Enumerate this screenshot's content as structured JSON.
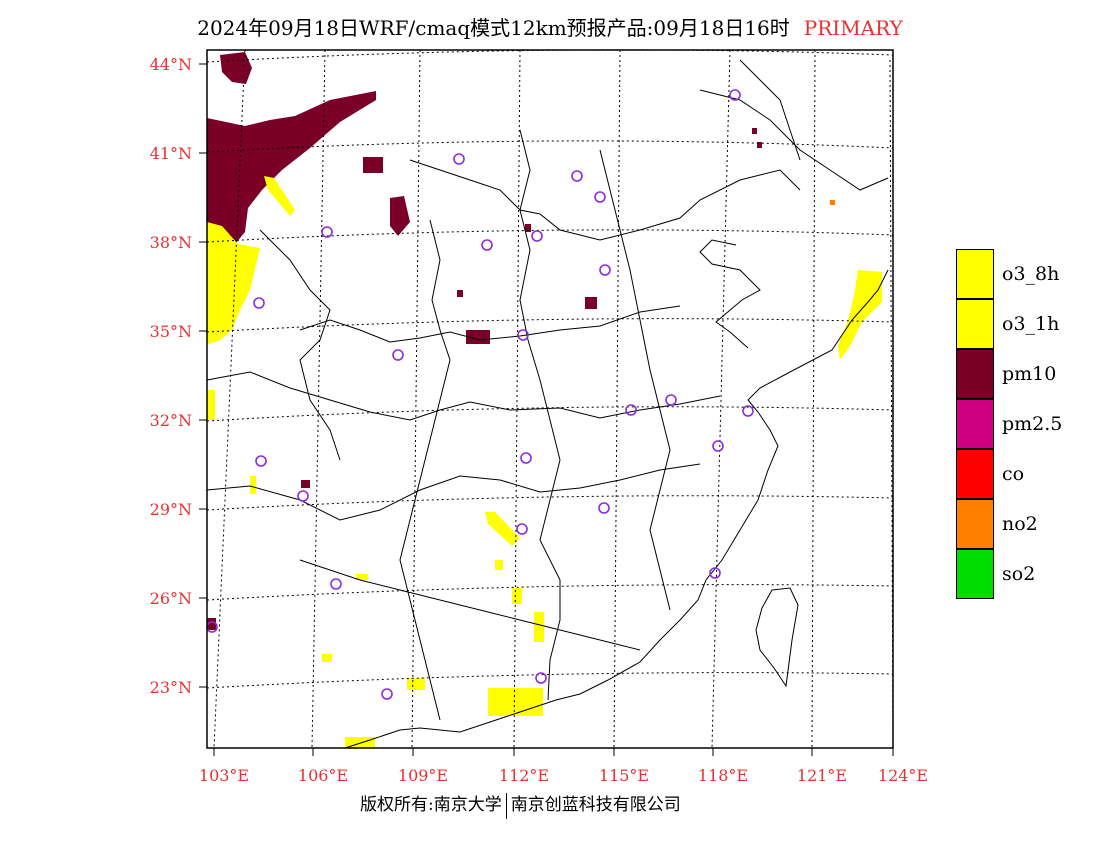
{
  "title": {
    "main": "2024年09月18日WRF/cmaq模式12km预报产品:09月18日16时",
    "primary": "PRIMARY",
    "primary_color": "#e83030"
  },
  "axis_color": "#e83030",
  "latitudes": [
    "44°N",
    "41°N",
    "38°N",
    "35°N",
    "32°N",
    "29°N",
    "26°N",
    "23°N"
  ],
  "longitudes": [
    "103°E",
    "106°E",
    "109°E",
    "112°E",
    "115°E",
    "118°E",
    "121°E",
    "124°E"
  ],
  "legend": [
    {
      "label": "o3_8h",
      "color": "#ffff00"
    },
    {
      "label": "o3_1h",
      "color": "#ffff00"
    },
    {
      "label": "pm10",
      "color": "#7a0028"
    },
    {
      "label": "pm2.5",
      "color": "#cc0080"
    },
    {
      "label": "co",
      "color": "#ff0000"
    },
    {
      "label": "no2",
      "color": "#ff8000"
    },
    {
      "label": "so2",
      "color": "#00dd00"
    }
  ],
  "station_marker_color": "#8a2be2",
  "copyright": {
    "left": "版权所有:南京大学",
    "right": "南京创蓝科技有限公司"
  }
}
